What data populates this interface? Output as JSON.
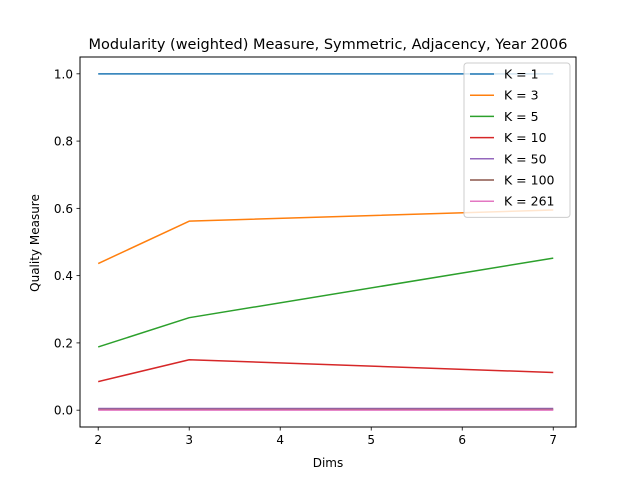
{
  "chart_data": {
    "type": "line",
    "title": "Modularity (weighted) Measure, Symmetric, Adjacency, Year 2006",
    "xlabel": "Dims",
    "ylabel": "Quality Measure",
    "x": [
      2,
      3,
      7
    ],
    "xlim": [
      1.8,
      7.25
    ],
    "ylim": [
      -0.05,
      1.05
    ],
    "xticks": [
      2,
      3,
      4,
      5,
      6,
      7
    ],
    "xtick_labels": [
      "2",
      "3",
      "4",
      "5",
      "6",
      "7"
    ],
    "yticks": [
      0.0,
      0.2,
      0.4,
      0.6,
      0.8,
      1.0
    ],
    "ytick_labels": [
      "0.0",
      "0.2",
      "0.4",
      "0.6",
      "0.8",
      "1.0"
    ],
    "grid": false,
    "legend_position": "top-right",
    "series": [
      {
        "name": "K = 1",
        "color": "#1f77b4",
        "values": [
          1.0,
          1.0,
          1.0
        ]
      },
      {
        "name": "K = 3",
        "color": "#ff7f0e",
        "values": [
          0.436,
          0.562,
          0.595
        ]
      },
      {
        "name": "K = 5",
        "color": "#2ca02c",
        "values": [
          0.188,
          0.275,
          0.452
        ]
      },
      {
        "name": "K = 10",
        "color": "#d62728",
        "values": [
          0.085,
          0.15,
          0.112
        ]
      },
      {
        "name": "K = 50",
        "color": "#9467bd",
        "values": [
          0.005,
          0.005,
          0.005
        ]
      },
      {
        "name": "K = 100",
        "color": "#8c564b",
        "values": [
          0.002,
          0.002,
          0.002
        ]
      },
      {
        "name": "K = 261",
        "color": "#e377c2",
        "values": [
          0.0,
          0.0,
          0.0
        ]
      }
    ]
  }
}
